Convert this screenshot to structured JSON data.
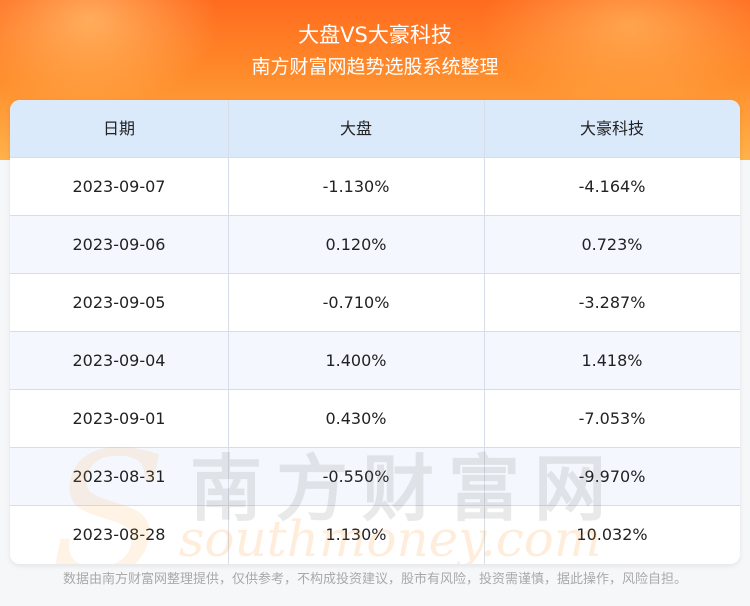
{
  "header": {
    "title": "大盘VS大豪科技",
    "subtitle": "南方财富网趋势选股系统整理"
  },
  "table": {
    "columns": [
      "日期",
      "大盘",
      "大豪科技"
    ],
    "rows": [
      [
        "2023-09-07",
        "-1.130%",
        "-4.164%"
      ],
      [
        "2023-09-06",
        "0.120%",
        "0.723%"
      ],
      [
        "2023-09-05",
        "-0.710%",
        "-3.287%"
      ],
      [
        "2023-09-04",
        "1.400%",
        "1.418%"
      ],
      [
        "2023-09-01",
        "0.430%",
        "-7.053%"
      ],
      [
        "2023-08-31",
        "-0.550%",
        "-9.970%"
      ],
      [
        "2023-08-28",
        "1.130%",
        "10.032%"
      ]
    ]
  },
  "watermark": {
    "cn": "南方财富网",
    "en": "southmoney.com"
  },
  "footer": {
    "disclaimer": "数据由南方财富网整理提供，仅供参考，不构成投资建议，股市有风险，投资需谨慎，据此操作，风险自担。"
  },
  "colors": {
    "header_gradient_top": "#ff6b1f",
    "header_gradient_bottom": "#ffb24a",
    "table_header_bg": "#dbeafb",
    "row_alt_bg": "#f4f8fe"
  }
}
